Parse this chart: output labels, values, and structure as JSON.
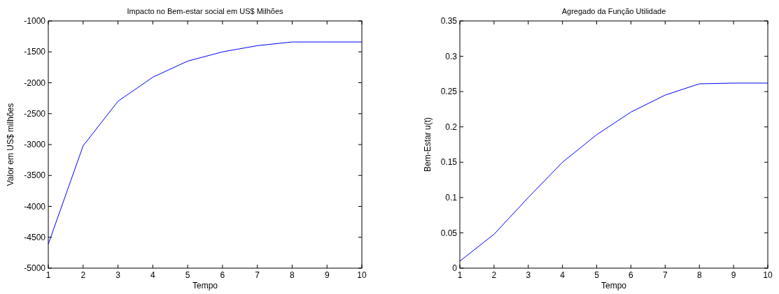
{
  "chart_data": [
    {
      "type": "line",
      "title": "Impacto no Bem-estar social em US$ Milhões",
      "xlabel": "Tempo",
      "ylabel": "Valor em US$ milhões",
      "x": [
        1,
        2,
        3,
        4,
        5,
        6,
        7,
        8,
        9,
        10
      ],
      "series": [
        {
          "color": "#0000ff",
          "values": [
            -4610,
            -3020,
            -2300,
            -1910,
            -1650,
            -1500,
            -1400,
            -1340,
            -1340,
            -1340
          ]
        }
      ],
      "xlim": [
        1,
        10
      ],
      "xticks": [
        1,
        2,
        3,
        4,
        5,
        6,
        7,
        8,
        9,
        10
      ],
      "ylim": [
        -5000,
        -1000
      ],
      "yticks": [
        -5000,
        -4500,
        -4000,
        -3500,
        -3000,
        -2500,
        -2000,
        -1500,
        -1000
      ],
      "grid": false
    },
    {
      "type": "line",
      "title": "Agregado da Função Utilidade",
      "xlabel": "Tempo",
      "ylabel": "Bem-Estar u(t)",
      "x": [
        1,
        2,
        3,
        4,
        5,
        6,
        7,
        8,
        9,
        10
      ],
      "series": [
        {
          "color": "#0000ff",
          "values": [
            0.01,
            0.048,
            0.1,
            0.15,
            0.189,
            0.221,
            0.245,
            0.261,
            0.262,
            0.262
          ]
        }
      ],
      "xlim": [
        1,
        10
      ],
      "xticks": [
        1,
        2,
        3,
        4,
        5,
        6,
        7,
        8,
        9,
        10
      ],
      "ylim": [
        0,
        0.35
      ],
      "yticks": [
        0,
        0.05,
        0.1,
        0.15,
        0.2,
        0.25,
        0.3,
        0.35
      ],
      "grid": false
    }
  ]
}
